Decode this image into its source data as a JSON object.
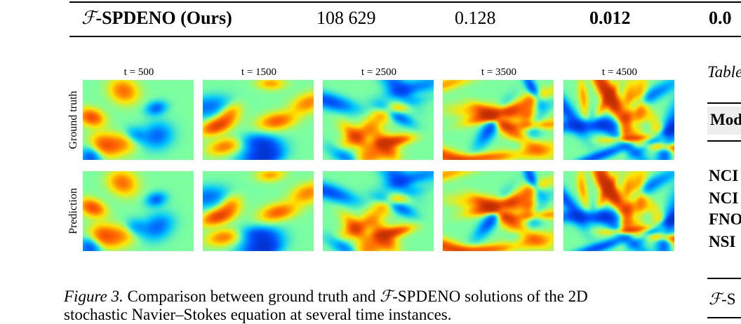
{
  "table_row": {
    "method_script": "ℱ",
    "method_name": "-SPDENO (Ours)",
    "params": "108 629",
    "value_1": "0.128",
    "value_2": "0.012",
    "value_3": "0.0"
  },
  "figure": {
    "time_labels": [
      "t = 500",
      "t = 1500",
      "t = 2500",
      "t = 3500",
      "t = 4500"
    ],
    "row_labels": [
      "Ground truth",
      "Prediction"
    ],
    "colormap": [
      "#00007f",
      "#0050ff",
      "#00c8ff",
      "#7dffa0",
      "#ffe600",
      "#ff5a00",
      "#800000"
    ],
    "caption": {
      "label": "Figure 3.",
      "text_1": "Comparison between ground truth and",
      "script": "ℱ",
      "text_2": "-SPDENO solutions of the 2D",
      "text_3": "stochastic Navier–Stokes equation at several time instances."
    }
  },
  "side_column": {
    "caption": "Table",
    "header": "Mod",
    "rows": [
      "NCI",
      "NCI",
      "FNO",
      "NSI"
    ],
    "ours_script": "ℱ",
    "ours_text": "-S"
  }
}
